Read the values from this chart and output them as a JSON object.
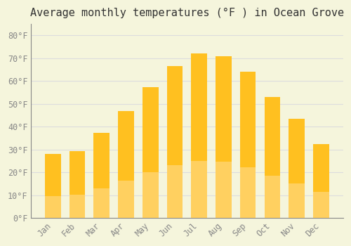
{
  "title": "Average monthly temperatures (°F ) in Ocean Grove",
  "months": [
    "Jan",
    "Feb",
    "Mar",
    "Apr",
    "May",
    "Jun",
    "Jul",
    "Aug",
    "Sep",
    "Oct",
    "Nov",
    "Dec"
  ],
  "values": [
    28,
    29.5,
    37.5,
    47,
    57.5,
    66.5,
    72,
    71,
    64,
    53,
    43.5,
    32.5
  ],
  "bar_color_top": "#FFC020",
  "bar_color_bottom": "#FFD060",
  "background_color": "#F5F5DC",
  "grid_color": "#DDDDDD",
  "text_color": "#888888",
  "ylim": [
    0,
    85
  ],
  "yticks": [
    0,
    10,
    20,
    30,
    40,
    50,
    60,
    70,
    80
  ],
  "ytick_labels": [
    "0°F",
    "10°F",
    "20°F",
    "30°F",
    "40°F",
    "50°F",
    "60°F",
    "70°F",
    "80°F"
  ],
  "title_fontsize": 11,
  "tick_fontsize": 8.5
}
